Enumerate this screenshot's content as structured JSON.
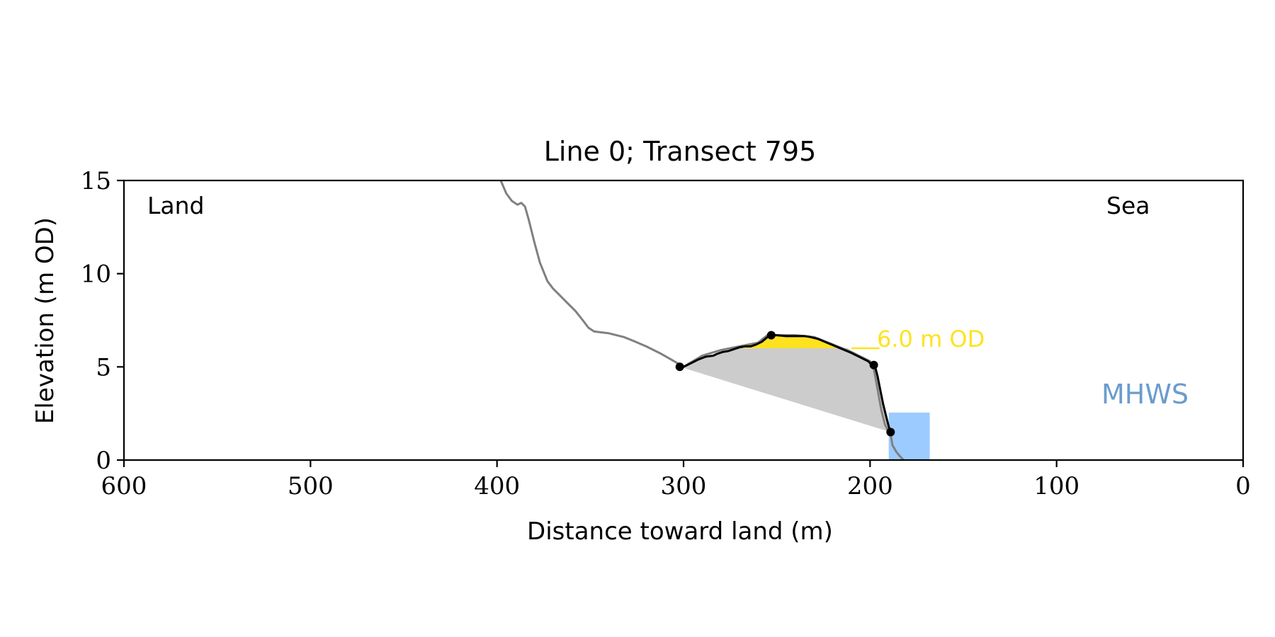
{
  "chart_data": {
    "type": "line",
    "title": "Line 0; Transect 795",
    "xlabel": "Distance toward land (m)",
    "ylabel": "Elevation (m OD)",
    "xlim": [
      600,
      0
    ],
    "ylim": [
      0,
      15
    ],
    "x_reversed": true,
    "xticks": [
      600,
      500,
      400,
      300,
      200,
      100,
      0
    ],
    "yticks": [
      0,
      5,
      10,
      15
    ],
    "grid": false,
    "annotations": {
      "left": "Land",
      "right": "Sea",
      "level_label": "6.0 m OD",
      "mhws_label": "MHWS"
    },
    "colors": {
      "profile": "#808080",
      "dune": "#000000",
      "yellow": "#ffe21f",
      "gray_fill": "#cccccc",
      "mhws_fill": "#9ccbff",
      "mhws_text": "#6a9ccd",
      "level_text": "#ffe21f"
    },
    "level_value": 6.0,
    "level_line_x": [
      210,
      195
    ],
    "profile": {
      "x": [
        398,
        395,
        392,
        389,
        387,
        385,
        383,
        380,
        377,
        373,
        370,
        367,
        363,
        358,
        354,
        351,
        348,
        344,
        340,
        336,
        332,
        327,
        320,
        312,
        305,
        300,
        290,
        280,
        270,
        260,
        255,
        250,
        240,
        230,
        220,
        210,
        200,
        198,
        196,
        194,
        192,
        190,
        189,
        188,
        186,
        184,
        182
      ],
      "y": [
        15.0,
        14.3,
        13.9,
        13.7,
        13.8,
        13.6,
        12.9,
        11.7,
        10.6,
        9.6,
        9.2,
        8.9,
        8.5,
        8.0,
        7.5,
        7.1,
        6.9,
        6.85,
        6.8,
        6.7,
        6.6,
        6.4,
        6.1,
        5.7,
        5.3,
        5.0,
        5.6,
        5.9,
        6.1,
        6.3,
        6.7,
        6.7,
        6.7,
        6.6,
        6.2,
        5.8,
        5.3,
        4.9,
        3.8,
        2.7,
        1.9,
        1.5,
        1.4,
        0.8,
        0.45,
        0.2,
        0.0
      ]
    },
    "dune_crest": {
      "x": [
        300,
        296,
        292,
        288,
        284,
        282,
        279,
        276,
        273,
        270,
        267,
        264,
        261,
        258,
        255,
        253,
        250,
        245,
        240,
        235,
        232,
        228,
        222,
        216,
        210,
        205,
        201,
        199,
        197,
        196,
        195,
        193,
        191,
        190,
        189
      ],
      "y": [
        5.0,
        5.2,
        5.4,
        5.55,
        5.6,
        5.7,
        5.8,
        5.85,
        5.95,
        6.05,
        6.1,
        6.1,
        6.2,
        6.35,
        6.6,
        6.7,
        6.7,
        6.65,
        6.65,
        6.65,
        6.6,
        6.5,
        6.25,
        6.0,
        5.75,
        5.5,
        5.3,
        5.1,
        4.9,
        4.5,
        4.0,
        3.0,
        2.2,
        1.8,
        1.5
      ]
    },
    "dune_points": [
      {
        "x": 302,
        "y": 5.0
      },
      {
        "x": 253,
        "y": 6.7
      },
      {
        "x": 198,
        "y": 5.1
      },
      {
        "x": 189,
        "y": 1.5
      }
    ],
    "yellow_fill": {
      "x": [
        270,
        267,
        264,
        261,
        258,
        255,
        253,
        250,
        245,
        240,
        235,
        232,
        228,
        222,
        216,
        212
      ],
      "y": [
        6.05,
        6.1,
        6.1,
        6.2,
        6.35,
        6.6,
        6.7,
        6.7,
        6.65,
        6.65,
        6.65,
        6.6,
        6.5,
        6.25,
        6.0,
        6.0
      ],
      "base": 6.0
    },
    "gray_fill": {
      "x": [
        302,
        296,
        292,
        288,
        284,
        280,
        276,
        272,
        270,
        212,
        205,
        201,
        199,
        197,
        196,
        195,
        193,
        191,
        190,
        189
      ],
      "y": [
        5.0,
        5.2,
        5.4,
        5.55,
        5.6,
        5.75,
        5.85,
        5.95,
        6.0,
        6.0,
        5.5,
        5.3,
        5.1,
        4.9,
        4.5,
        4.0,
        3.0,
        2.2,
        1.8,
        1.5
      ]
    },
    "mhws_box": {
      "x0": 190,
      "x1": 168,
      "y0": 0,
      "y1": 2.55
    }
  }
}
